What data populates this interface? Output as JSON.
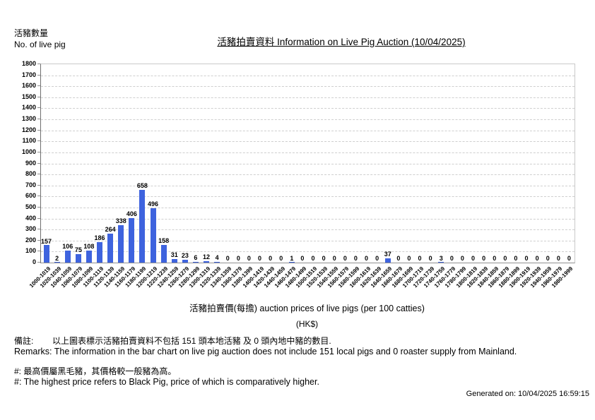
{
  "header": {
    "y_axis_label_zh": "活豬數量",
    "y_axis_label_en": "No. of live pig",
    "title": "活豬拍賣資料 Information on Live Pig Auction (10/04/2025)"
  },
  "chart_data": {
    "type": "bar",
    "title": "活豬拍賣資料 Information on Live Pig Auction (10/04/2025)",
    "xlabel": "活豬拍賣價(每擔) auction prices of live pigs (per 100 catties)",
    "xlabel_unit": "(HK$)",
    "ylabel": "活豬數量 No. of live pig",
    "ylim": [
      0,
      1800
    ],
    "ytick_step": 100,
    "grid": true,
    "bar_color": "#3E63DE",
    "categories": [
      "1000-1019",
      "1020-1039",
      "1040-1059",
      "1060-1079",
      "1080-1099",
      "1100-1119",
      "1120-1139",
      "1140-1159",
      "1160-1179",
      "1180-1199",
      "1200-1219",
      "1220-1239",
      "1240-1259",
      "1260-1279",
      "1280-1299",
      "1300-1319",
      "1320-1339",
      "1340-1359",
      "1360-1379",
      "1380-1399",
      "1400-1419",
      "1420-1439",
      "1440-1459",
      "1460-1479",
      "1480-1499",
      "1500-1519",
      "1520-1539",
      "1540-1559",
      "1560-1579",
      "1580-1599",
      "1600-1619",
      "1620-1639",
      "1640-1659",
      "1660-1679",
      "1680-1699",
      "1700-1719",
      "1720-1739",
      "1740-1759",
      "1760-1779",
      "1780-1799",
      "1800-1819",
      "1820-1839",
      "1840-1859",
      "1860-1879",
      "1880-1899",
      "1900-1919",
      "1920-1939",
      "1940-1959",
      "1960-1979",
      "1980-1999"
    ],
    "values": [
      157,
      2,
      106,
      75,
      108,
      186,
      264,
      338,
      406,
      658,
      496,
      158,
      31,
      23,
      6,
      12,
      4,
      0,
      0,
      0,
      0,
      0,
      0,
      1,
      0,
      0,
      0,
      0,
      0,
      0,
      0,
      0,
      37,
      0,
      0,
      0,
      0,
      3,
      0,
      0,
      0,
      0,
      0,
      0,
      0,
      0,
      0,
      0,
      0,
      0
    ]
  },
  "footer": {
    "remark_zh": "備註:        以上圖表標示活豬拍賣資料不包括 151 頭本地活豬 及 0 頭內地中豬的數目.",
    "remark_en": "Remarks: The information in the bar chart on live pig auction does not include 151 local pigs and 0 roaster supply from Mainland.",
    "note_zh": "#: 最高價屬黑毛豬，其價格較一般豬為高。",
    "note_en": "#: The highest price refers to Black Pig, price of which is comparatively higher.",
    "generated": "Generated on: 10/04/2025 16:59:15"
  }
}
